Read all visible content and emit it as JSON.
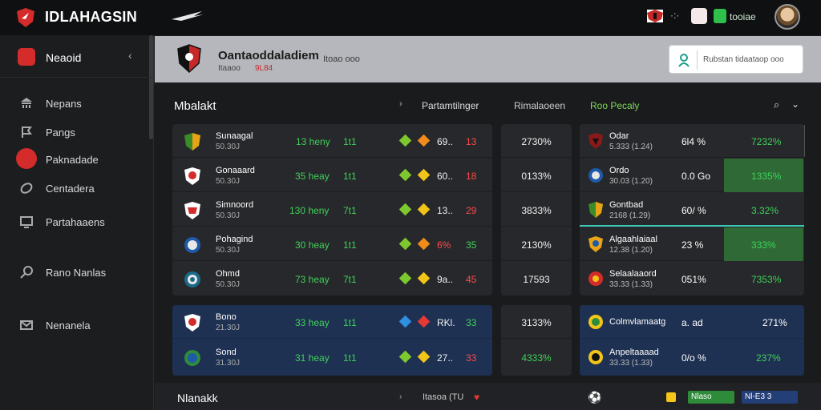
{
  "app": {
    "brand": "IDLAHAGSIN",
    "status_text": "tooiae"
  },
  "sidebar": {
    "top_label": "Neaoid",
    "items": [
      {
        "label": "Nepans",
        "icon": "bank-icon"
      },
      {
        "label": "Pangs",
        "icon": "flag-icon"
      },
      {
        "label": "Paknadade",
        "icon": "soccer-icon"
      },
      {
        "label": "Centadera",
        "icon": "football-icon"
      },
      {
        "label": "Partahaaens",
        "icon": "monitor-icon"
      },
      {
        "label": "Rano Nanlas",
        "icon": "tennis-icon"
      },
      {
        "label": "Nenanela",
        "icon": "mail-icon"
      }
    ]
  },
  "header": {
    "title": "Oantaoddaladiem",
    "subtitle": "Itoao ooo",
    "meta1": "Itaaoo",
    "meta2": "9L84",
    "search_placeholder": "Rubstan tidaataop ooo"
  },
  "market": {
    "title": "Mbalakt",
    "col1": "Partamtilnger",
    "col2": "Rimalaoeen",
    "col3": "Roo Pecaly"
  },
  "left_rows": [
    {
      "team": "Sunaagal",
      "sub": "50.30J",
      "hl": "13 heny",
      "num": "1t1",
      "odd": "69..",
      "odd2": "13"
    },
    {
      "team": "Gonaaard",
      "sub": "50.30J",
      "hl": "35 heay",
      "num": "1t1",
      "odd": "60..",
      "odd2": "18"
    },
    {
      "team": "Simnoord",
      "sub": "50.30J",
      "hl": "130 heny",
      "num": "7t1",
      "odd": "13..",
      "odd2": "29"
    },
    {
      "team": "Pohagind",
      "sub": "50.30J",
      "hl": "30 heay",
      "num": "1t1",
      "odd": "6% ",
      "odd2": "35"
    },
    {
      "team": "Ohmd",
      "sub": "50.30J",
      "hl": "73 heay",
      "num": "7t1",
      "odd": "9a..",
      "odd2": "45"
    }
  ],
  "left_rows_blue": [
    {
      "team": "Bono",
      "sub": "21.30J",
      "hl": "33 heay",
      "num": "1t1",
      "odd": "RKl.",
      "odd2": "33"
    },
    {
      "team": "Sond",
      "sub": "31.30J",
      "hl": "31 heay",
      "num": "1t1",
      "odd": "27..",
      "odd2": "33"
    }
  ],
  "mid_values": [
    "2730%",
    "0133%",
    "3833%",
    "2130%",
    "17593"
  ],
  "mid_values_blue": [
    "3133%",
    "4333%"
  ],
  "right_rows": [
    {
      "team": "Odar",
      "sub": "5.333 (1.24)",
      "val": "6l4 %",
      "pct": "7232%"
    },
    {
      "team": "Ordo",
      "sub": "30.03 (1.20)",
      "val": "0.0 Go",
      "pct": "1335%"
    },
    {
      "team": "Gontbad",
      "sub": "2168 (1.29)",
      "val": "60/ %",
      "pct": "3.32%"
    },
    {
      "team": "Algaahlaiaal",
      "sub": "12.38 (1.20)",
      "val": "23 %",
      "pct": "333%"
    },
    {
      "team": "Selaalaaord",
      "sub": "33.33 (1.33)",
      "val": "051%",
      "pct": "7353%"
    }
  ],
  "right_rows_blue": [
    {
      "team": "Colmvlamaatg",
      "sub": "",
      "val": "a. ad",
      "pct": "271%"
    },
    {
      "team": "Anpeltaaaad",
      "sub": "33.33 (1.33)",
      "val": "0/o %",
      "pct": "237%"
    }
  ],
  "bottom": {
    "title": "Nlanakk",
    "label": "Itasoa (TU",
    "green_tag": "Nlaso",
    "blue_tag": "Nl-E3 3"
  },
  "colors": {
    "accent_red": "#d42b2b",
    "accent_green": "#3fd15a",
    "panel_blue": "#1e3152"
  }
}
